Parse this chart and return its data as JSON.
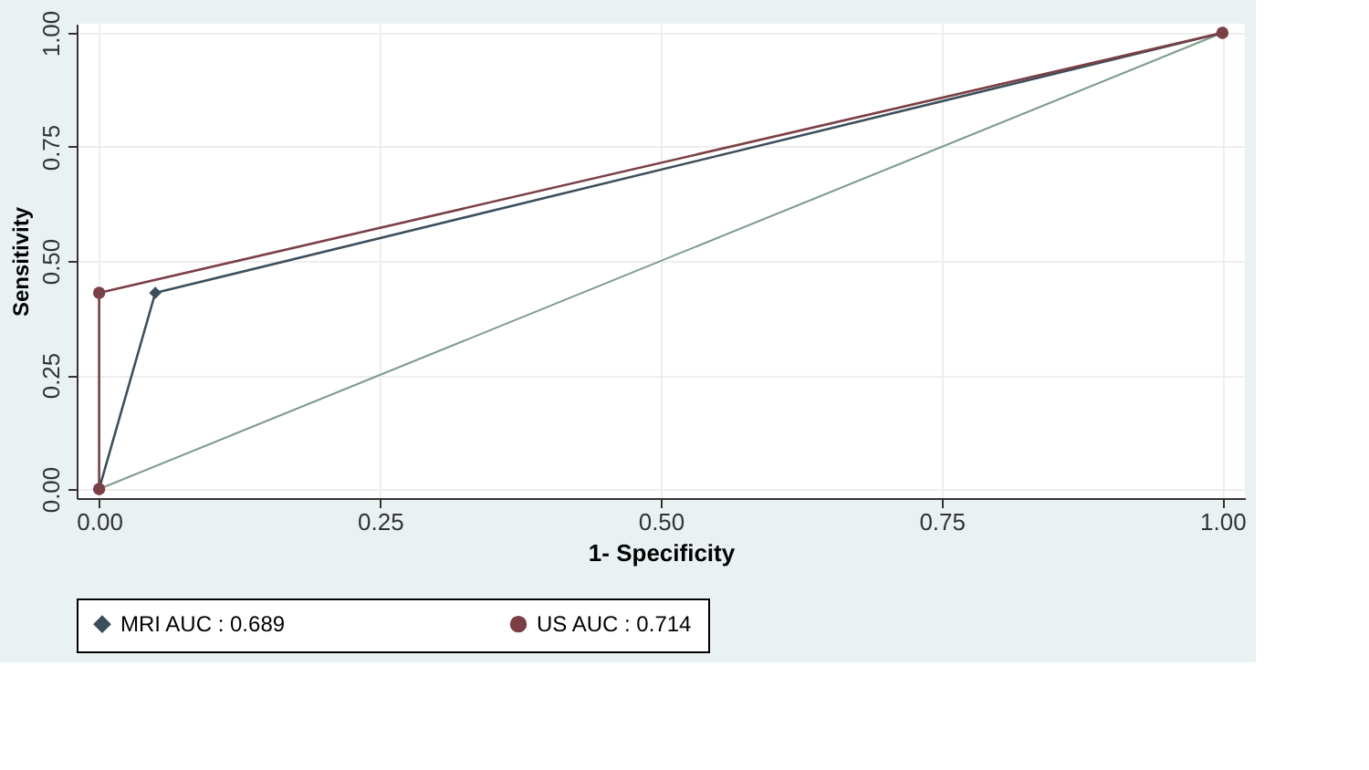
{
  "chart_data": {
    "type": "line",
    "xlabel": "1- Specificity",
    "ylabel": "Sensitivity",
    "xlim": [
      -0.02,
      1.02
    ],
    "ylim": [
      -0.02,
      1.02
    ],
    "xticks": [
      {
        "value": 0,
        "label": "0.00"
      },
      0.25,
      {
        "value": 0.5,
        "label": "0.50"
      },
      0.75,
      {
        "value": 1,
        "label": "1.00"
      }
    ],
    "yticks": [
      {
        "value": 0,
        "label": "0.00"
      },
      0.25,
      {
        "value": 0.5,
        "label": "0.50"
      },
      0.75,
      {
        "value": 1,
        "label": "1.00"
      }
    ],
    "grid": true,
    "legend": "bottom",
    "series": [
      {
        "name": "MRI AUC : 0.689",
        "color": "#3c4f5c",
        "marker": "diamond",
        "x": [
          0,
          0.05,
          1
        ],
        "values": [
          0,
          0.43,
          1
        ]
      },
      {
        "name": "US AUC : 0.714",
        "color": "#7b3f46",
        "marker": "circle",
        "x": [
          0,
          0,
          1
        ],
        "values": [
          0,
          0.43,
          1
        ]
      },
      {
        "color": "#7d9a8c",
        "marker": "none",
        "x": [
          0,
          1
        ],
        "values": [
          0,
          1
        ]
      }
    ]
  }
}
